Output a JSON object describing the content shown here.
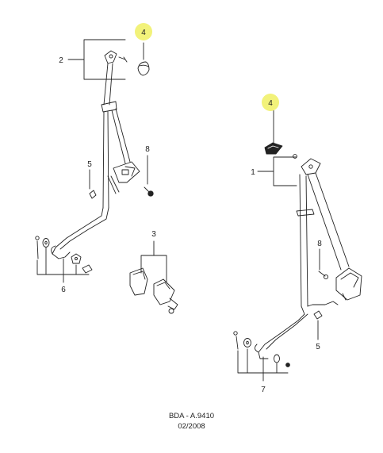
{
  "callouts": {
    "c1": "1",
    "c2": "2",
    "c3": "3",
    "c4a": "4",
    "c4b": "4",
    "c5a": "5",
    "c5b": "5",
    "c6": "6",
    "c7": "7",
    "c8a": "8",
    "c8b": "8"
  },
  "highlight_color": "#f2f27a",
  "footer": {
    "code": "BDA - A.9410",
    "date": "02/2008"
  }
}
